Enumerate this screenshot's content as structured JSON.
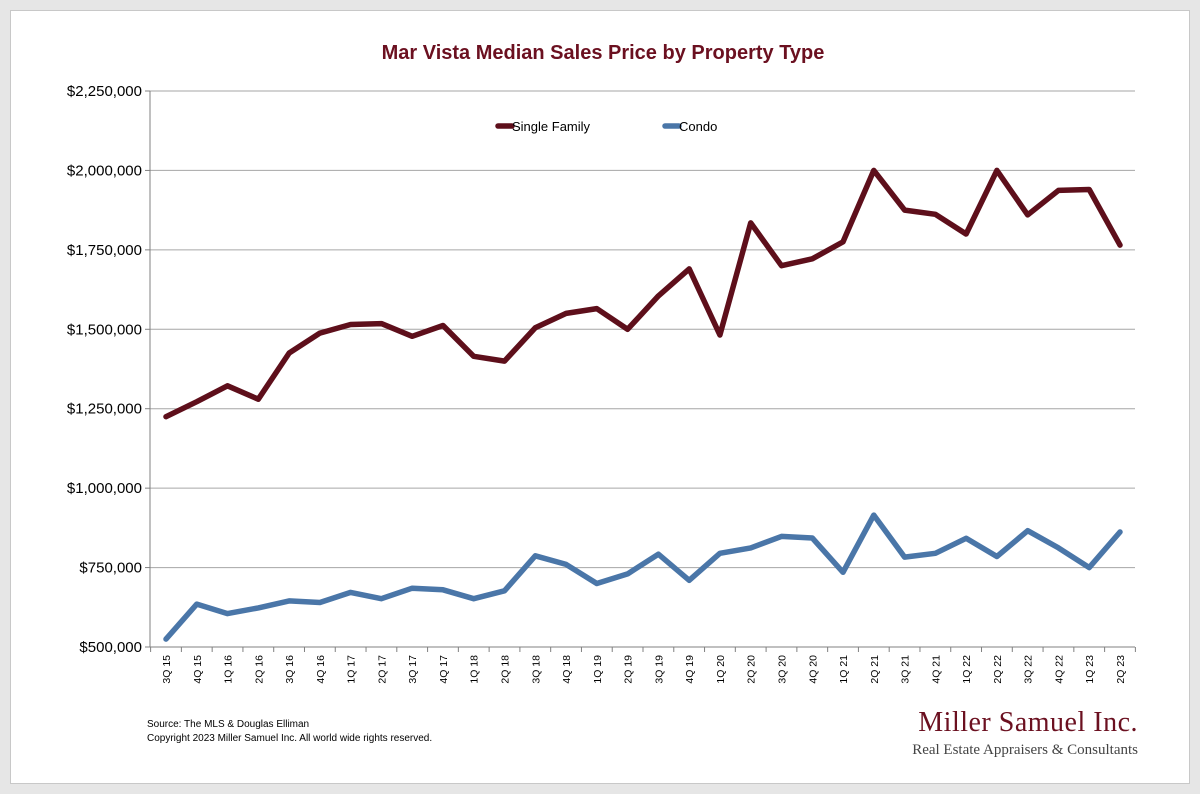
{
  "chart_data": {
    "type": "line",
    "title": "Mar Vista Median Sales Price by Property Type",
    "xlabel": "",
    "ylabel": "",
    "ylim": [
      500000,
      2250000
    ],
    "yticks": [
      500000,
      750000,
      1000000,
      1250000,
      1500000,
      1750000,
      2000000,
      2250000
    ],
    "ytick_labels": [
      "$500,000",
      "$750,000",
      "$1,000,000",
      "$1,250,000",
      "$1,500,000",
      "$1,750,000",
      "$2,000,000",
      "$2,250,000"
    ],
    "grid": "horizontal",
    "legend": "top-center",
    "categories": [
      "3Q 15",
      "4Q 15",
      "1Q 16",
      "2Q 16",
      "3Q 16",
      "4Q 16",
      "1Q 17",
      "2Q 17",
      "3Q 17",
      "4Q 17",
      "1Q 18",
      "2Q 18",
      "3Q 18",
      "4Q 18",
      "1Q 19",
      "2Q 19",
      "3Q 19",
      "4Q 19",
      "1Q 20",
      "2Q 20",
      "3Q 20",
      "4Q 20",
      "1Q 21",
      "2Q 21",
      "3Q 21",
      "4Q 21",
      "1Q 22",
      "2Q 22",
      "3Q 22",
      "4Q 22",
      "1Q 23",
      "2Q 23"
    ],
    "series": [
      {
        "name": "Single Family",
        "color": "#5e0f1b",
        "values": [
          1225000,
          1272000,
          1322000,
          1280000,
          1425000,
          1488000,
          1515000,
          1518000,
          1478000,
          1512000,
          1415000,
          1400000,
          1505000,
          1550000,
          1565000,
          1500000,
          1605000,
          1690000,
          1482000,
          1835000,
          1700000,
          1722000,
          1775000,
          2000000,
          1875000,
          1862000,
          1800000,
          2000000,
          1860000,
          1937000,
          1940000,
          1765000
        ]
      },
      {
        "name": "Condo",
        "color": "#4a76a8",
        "values": [
          525000,
          635000,
          605000,
          623000,
          645000,
          640000,
          672000,
          652000,
          685000,
          680000,
          652000,
          677000,
          787000,
          760000,
          700000,
          730000,
          792000,
          710000,
          795000,
          812000,
          848000,
          843000,
          735000,
          915000,
          783000,
          795000,
          842000,
          785000,
          866000,
          812000,
          750000,
          862000
        ]
      }
    ]
  },
  "source_line1": "Source: The MLS & Douglas Elliman",
  "source_line2": "Copyright 2023 Miller Samuel Inc.  All world wide rights reserved.",
  "logo_name": "Miller Samuel Inc.",
  "logo_tagline": "Real Estate Appraisers & Consultants"
}
